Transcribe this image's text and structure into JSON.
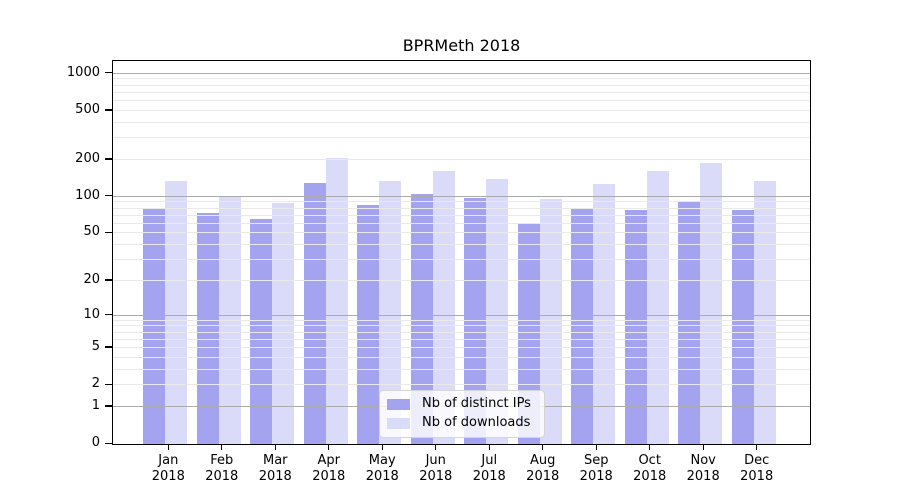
{
  "title": "BPRMeth 2018",
  "chart_data": {
    "type": "bar",
    "title": "BPRMeth 2018",
    "categories": [
      "Jan",
      "Feb",
      "Mar",
      "Apr",
      "May",
      "Jun",
      "Jul",
      "Aug",
      "Sep",
      "Oct",
      "Nov",
      "Dec"
    ],
    "category_year": "2018",
    "series": [
      {
        "name": "Nb of distinct IPs",
        "color": "#a3a3f0",
        "values": [
          80,
          72,
          64,
          127,
          84,
          104,
          96,
          60,
          78,
          76,
          89,
          76
        ]
      },
      {
        "name": "Nb of downloads",
        "color": "#dadaf9",
        "values": [
          133,
          99,
          87,
          204,
          131,
          160,
          137,
          94,
          124,
          158,
          186,
          132
        ]
      }
    ],
    "yscale": "log1p",
    "yticks": [
      0,
      1,
      2,
      5,
      10,
      20,
      50,
      100,
      200,
      500,
      1000
    ],
    "major_gridlines": [
      1,
      10,
      100,
      1000
    ],
    "ylim": [
      0,
      1243
    ],
    "xlabel": "",
    "ylabel": "",
    "grid": "horizontal",
    "legend_position": "lower-center",
    "colors": {
      "minor_grid": "#e9e9e9",
      "major_grid": "#ababab",
      "spine": "#000000"
    }
  }
}
